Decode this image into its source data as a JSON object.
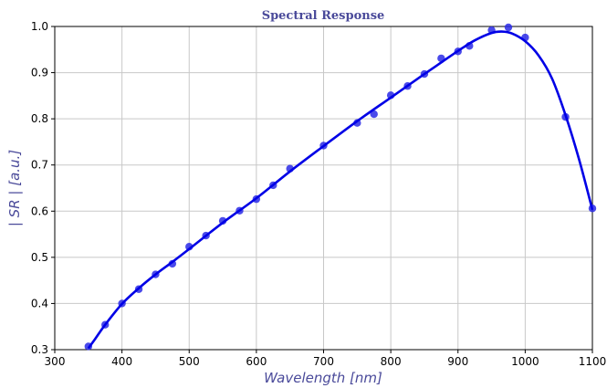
{
  "chart_data": {
    "type": "scatter",
    "title": "Spectral Response",
    "xlabel": "Wavelength [nm]",
    "ylabel": "| SR | [a.u.]",
    "xlim": [
      300,
      1100
    ],
    "ylim": [
      0.3,
      1.0
    ],
    "xticks": [
      300,
      400,
      500,
      600,
      700,
      800,
      900,
      1000,
      1100
    ],
    "yticks": [
      0.3,
      0.4,
      0.5,
      0.6,
      0.7,
      0.8,
      0.9,
      1.0
    ],
    "xtick_labels": [
      "300",
      "400",
      "500",
      "600",
      "700",
      "800",
      "900",
      "1000",
      "1100"
    ],
    "ytick_labels": [
      "0.3",
      "0.4",
      "0.5",
      "0.6",
      "0.7",
      "0.8",
      "0.9",
      "1.0"
    ],
    "grid": true,
    "colors": {
      "points": "#2a2ae6",
      "line": "#0000e6",
      "title": "#4a4a9a",
      "label": "#4a4a9a"
    },
    "series": [
      {
        "kind": "points",
        "x": [
          350,
          375,
          400,
          425,
          450,
          475,
          500,
          525,
          550,
          575,
          600,
          625,
          650,
          700,
          750,
          775,
          800,
          825,
          850,
          875,
          900,
          917,
          950,
          975,
          1000,
          1060,
          1100
        ],
        "y": [
          0.307,
          0.354,
          0.4,
          0.431,
          0.463,
          0.486,
          0.523,
          0.547,
          0.579,
          0.601,
          0.626,
          0.656,
          0.692,
          0.742,
          0.791,
          0.81,
          0.851,
          0.871,
          0.897,
          0.931,
          0.946,
          0.958,
          0.992,
          0.998,
          0.976,
          0.804,
          0.606
        ]
      },
      {
        "kind": "fit-line",
        "x": [
          350,
          360,
          375,
          400,
          425,
          450,
          475,
          500,
          550,
          600,
          650,
          700,
          750,
          800,
          850,
          875,
          900,
          925,
          950,
          965,
          980,
          1000,
          1020,
          1040,
          1060,
          1080,
          1100
        ],
        "y": [
          0.303,
          0.323,
          0.354,
          0.399,
          0.433,
          0.463,
          0.49,
          0.518,
          0.575,
          0.628,
          0.686,
          0.741,
          0.795,
          0.846,
          0.897,
          0.922,
          0.947,
          0.97,
          0.986,
          0.989,
          0.985,
          0.968,
          0.937,
          0.887,
          0.808,
          0.713,
          0.603
        ]
      }
    ]
  }
}
